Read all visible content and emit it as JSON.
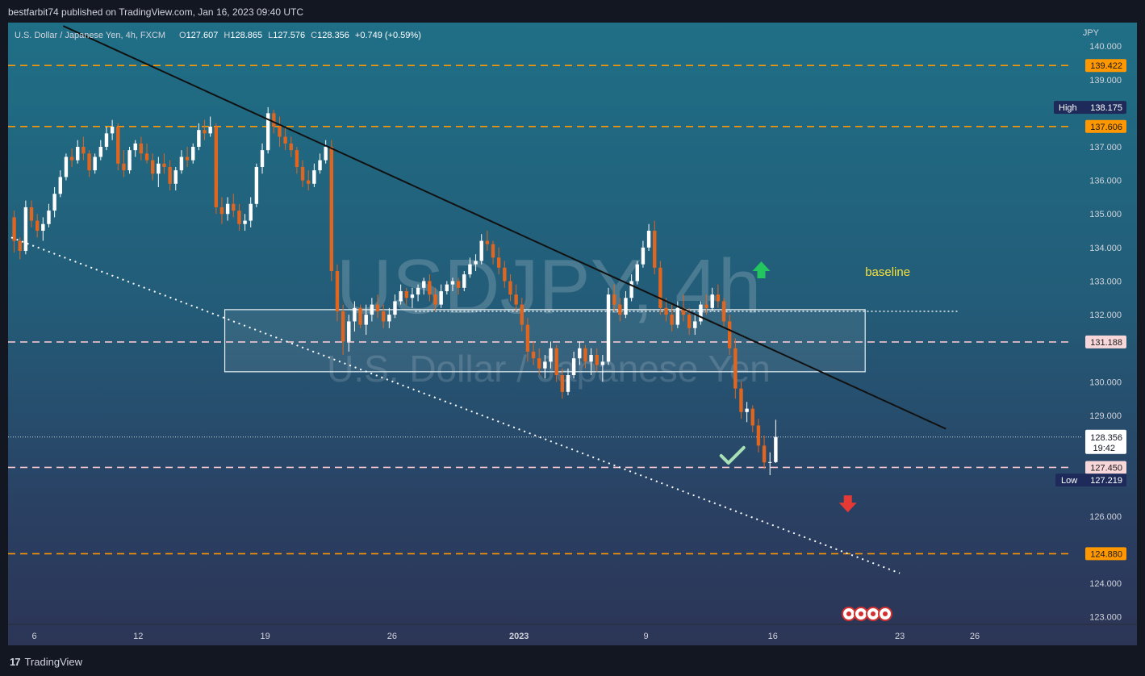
{
  "header": {
    "publisher": "bestfarbit74 published on TradingView.com, Jan 16, 2023 09:40 UTC"
  },
  "footer": {
    "logo_glyph": "17",
    "brand": "TradingView"
  },
  "colors": {
    "up": "#ffffff",
    "down": "#e0661f",
    "orange_line": "#ff9800",
    "pink_line": "#f5c6cb",
    "high_low_badge": "#1e2b5a",
    "trendline": "#111111",
    "dotted_line": "#ffffff",
    "baseline_text": "#f5e13a",
    "up_arrow": "#22c55e",
    "down_arrow": "#e53935",
    "check": "#a7e0b5"
  },
  "chart_data": {
    "type": "candlestick",
    "title": "U.S. Dollar / Japanese Yen, 4h, FXCM",
    "ohlc_text": {
      "o_label": "O",
      "o": "127.607",
      "h_label": "H",
      "h": "128.865",
      "l_label": "L",
      "l": "127.576",
      "c_label": "C",
      "c": "128.356",
      "change": "+0.749 (+0.59%)"
    },
    "watermark_title": "USDJPY, 4h",
    "watermark_subtitle": "U.S. Dollar / Japanese Yen",
    "currency": "JPY",
    "ylim": [
      122.8,
      140.7
    ],
    "y_ticks": [
      "123.000",
      "124.000",
      "126.000",
      "128.000",
      "129.000",
      "130.000",
      "132.000",
      "133.000",
      "134.000",
      "135.000",
      "136.000",
      "137.000",
      "139.000",
      "140.000"
    ],
    "x_ticks": [
      {
        "label": "6",
        "i": 4,
        "bold": false
      },
      {
        "label": "12",
        "i": 22,
        "bold": false
      },
      {
        "label": "19",
        "i": 44,
        "bold": false
      },
      {
        "label": "26",
        "i": 66,
        "bold": false
      },
      {
        "label": "2023",
        "i": 88,
        "bold": true
      },
      {
        "label": "9",
        "i": 110,
        "bold": false
      },
      {
        "label": "16",
        "i": 132,
        "bold": false
      },
      {
        "label": "23",
        "i": 154,
        "bold": false
      },
      {
        "label": "26",
        "i": 167,
        "bold": false
      }
    ],
    "levels": [
      {
        "value": 139.422,
        "label": "139.422",
        "style": "orange"
      },
      {
        "value": 137.606,
        "label": "137.606",
        "style": "orange"
      },
      {
        "value": 131.188,
        "label": "131.188",
        "style": "pink"
      },
      {
        "value": 127.45,
        "label": "127.450",
        "style": "pink"
      },
      {
        "value": 124.88,
        "label": "124.880",
        "style": "orange"
      }
    ],
    "high": {
      "label": "High",
      "value": 138.175,
      "text": "138.175"
    },
    "low": {
      "label": "Low",
      "value": 127.219,
      "text": "127.219"
    },
    "last_price": {
      "value": 128.356,
      "text": "128.356",
      "countdown": "19:42"
    },
    "baseline_label": "baseline",
    "baseline_value": 132.1,
    "zone": {
      "i_from": 37,
      "i_to": 148,
      "top": 132.15,
      "bottom": 130.3
    },
    "downtrend_line": {
      "from": {
        "i": 9,
        "v": 140.6
      },
      "to": {
        "i": 162,
        "v": 128.6
      }
    },
    "support_line": {
      "from": {
        "i": 0,
        "v": 134.3
      },
      "to": {
        "i": 154,
        "v": 124.3
      }
    },
    "arrow_up": {
      "i": 130,
      "v": 133.3
    },
    "arrow_down": {
      "i": 145,
      "v": 126.4
    },
    "check": {
      "i": 125,
      "v": 127.8
    },
    "event_icon_count": 4,
    "candles": [
      [
        134.9,
        135.1,
        133.85,
        134.2
      ],
      [
        134.2,
        134.3,
        133.65,
        133.9
      ],
      [
        133.9,
        135.4,
        133.8,
        135.2
      ],
      [
        135.2,
        135.4,
        134.6,
        134.8
      ],
      [
        134.8,
        135.0,
        134.3,
        134.5
      ],
      [
        134.5,
        134.9,
        134.2,
        134.7
      ],
      [
        134.7,
        135.3,
        134.6,
        135.1
      ],
      [
        135.1,
        135.8,
        134.9,
        135.6
      ],
      [
        135.6,
        136.3,
        135.5,
        136.1
      ],
      [
        136.1,
        136.8,
        136.0,
        136.7
      ],
      [
        136.7,
        136.95,
        136.4,
        136.6
      ],
      [
        136.6,
        137.2,
        136.5,
        137.0
      ],
      [
        137.0,
        137.3,
        136.6,
        136.8
      ],
      [
        136.8,
        136.9,
        136.1,
        136.3
      ],
      [
        136.3,
        136.8,
        136.2,
        136.7
      ],
      [
        136.7,
        137.2,
        136.6,
        137.0
      ],
      [
        137.0,
        137.6,
        136.9,
        137.4
      ],
      [
        137.4,
        137.8,
        137.2,
        137.6
      ],
      [
        137.6,
        137.7,
        136.3,
        136.5
      ],
      [
        136.5,
        136.9,
        136.1,
        136.3
      ],
      [
        136.3,
        137.0,
        136.2,
        136.9
      ],
      [
        136.9,
        137.2,
        136.7,
        137.1
      ],
      [
        137.1,
        137.3,
        136.6,
        136.8
      ],
      [
        136.8,
        137.1,
        136.5,
        136.6
      ],
      [
        136.6,
        136.8,
        136.0,
        136.2
      ],
      [
        136.2,
        136.7,
        135.8,
        136.5
      ],
      [
        136.5,
        136.8,
        136.2,
        136.4
      ],
      [
        136.4,
        136.6,
        135.7,
        135.9
      ],
      [
        135.9,
        136.4,
        135.7,
        136.3
      ],
      [
        136.3,
        136.9,
        136.2,
        136.7
      ],
      [
        136.7,
        137.0,
        136.4,
        136.6
      ],
      [
        136.6,
        137.1,
        136.5,
        137.0
      ],
      [
        137.0,
        137.7,
        136.9,
        137.5
      ],
      [
        137.5,
        137.8,
        137.2,
        137.4
      ],
      [
        137.4,
        137.9,
        137.3,
        137.6
      ],
      [
        137.6,
        137.7,
        135.0,
        135.2
      ],
      [
        135.2,
        135.5,
        134.7,
        135.0
      ],
      [
        135.0,
        135.5,
        134.8,
        135.3
      ],
      [
        135.3,
        135.6,
        134.9,
        135.1
      ],
      [
        135.1,
        135.3,
        134.5,
        134.7
      ],
      [
        134.7,
        135.0,
        134.5,
        134.8
      ],
      [
        134.8,
        135.5,
        134.6,
        135.3
      ],
      [
        135.3,
        136.5,
        135.2,
        136.4
      ],
      [
        136.4,
        137.1,
        136.2,
        136.9
      ],
      [
        136.9,
        138.18,
        136.8,
        138.0
      ],
      [
        138.0,
        138.1,
        137.4,
        137.6
      ],
      [
        137.6,
        137.9,
        137.0,
        137.3
      ],
      [
        137.3,
        137.6,
        136.9,
        137.1
      ],
      [
        137.1,
        137.3,
        136.7,
        136.9
      ],
      [
        136.9,
        137.0,
        136.2,
        136.4
      ],
      [
        136.4,
        136.6,
        135.8,
        136.0
      ],
      [
        136.0,
        136.3,
        135.7,
        135.9
      ],
      [
        135.9,
        136.5,
        135.8,
        136.3
      ],
      [
        136.3,
        136.8,
        136.2,
        136.6
      ],
      [
        136.6,
        137.2,
        136.5,
        137.0
      ],
      [
        137.0,
        137.2,
        133.0,
        133.3
      ],
      [
        133.3,
        133.5,
        131.8,
        132.1
      ],
      [
        132.1,
        132.3,
        130.8,
        131.2
      ],
      [
        131.2,
        132.0,
        130.9,
        131.8
      ],
      [
        131.8,
        132.4,
        131.5,
        132.2
      ],
      [
        132.2,
        132.3,
        131.6,
        131.7
      ],
      [
        131.7,
        132.3,
        131.4,
        132.0
      ],
      [
        132.0,
        132.5,
        131.8,
        132.3
      ],
      [
        132.3,
        132.6,
        131.9,
        132.1
      ],
      [
        132.1,
        132.3,
        131.6,
        131.8
      ],
      [
        131.8,
        132.2,
        131.6,
        132.0
      ],
      [
        132.0,
        132.6,
        131.9,
        132.4
      ],
      [
        132.4,
        132.9,
        132.3,
        132.7
      ],
      [
        132.7,
        132.8,
        132.3,
        132.5
      ],
      [
        132.5,
        132.8,
        132.2,
        132.6
      ],
      [
        132.6,
        132.9,
        132.4,
        132.8
      ],
      [
        132.8,
        133.1,
        132.6,
        133.0
      ],
      [
        133.0,
        133.2,
        132.4,
        132.6
      ],
      [
        132.6,
        132.8,
        132.1,
        132.3
      ],
      [
        132.3,
        132.9,
        132.2,
        132.7
      ],
      [
        132.7,
        133.0,
        132.6,
        132.9
      ],
      [
        132.9,
        133.1,
        132.7,
        133.0
      ],
      [
        133.0,
        133.1,
        132.6,
        132.8
      ],
      [
        132.8,
        133.3,
        132.7,
        133.2
      ],
      [
        133.2,
        133.7,
        133.1,
        133.5
      ],
      [
        133.5,
        133.8,
        133.3,
        133.6
      ],
      [
        133.6,
        134.4,
        133.5,
        134.2
      ],
      [
        134.2,
        134.5,
        133.9,
        134.1
      ],
      [
        134.1,
        134.2,
        133.5,
        133.7
      ],
      [
        133.7,
        134.0,
        133.2,
        133.4
      ],
      [
        133.4,
        133.6,
        132.8,
        133.0
      ],
      [
        133.0,
        133.2,
        132.4,
        132.6
      ],
      [
        132.6,
        132.9,
        132.1,
        132.3
      ],
      [
        132.3,
        132.5,
        131.5,
        131.7
      ],
      [
        131.7,
        131.9,
        130.6,
        130.9
      ],
      [
        130.9,
        131.2,
        130.5,
        130.7
      ],
      [
        130.7,
        131.0,
        130.2,
        130.4
      ],
      [
        130.4,
        130.8,
        130.1,
        130.6
      ],
      [
        130.6,
        131.2,
        130.4,
        131.0
      ],
      [
        131.0,
        131.1,
        130.0,
        130.2
      ],
      [
        130.2,
        130.4,
        129.5,
        129.7
      ],
      [
        129.7,
        130.4,
        129.6,
        130.2
      ],
      [
        130.2,
        130.9,
        130.1,
        130.7
      ],
      [
        130.7,
        131.2,
        130.5,
        131.0
      ],
      [
        131.0,
        131.1,
        130.4,
        130.6
      ],
      [
        130.6,
        131.0,
        130.2,
        130.8
      ],
      [
        130.8,
        131.0,
        130.3,
        130.5
      ],
      [
        130.5,
        130.8,
        130.0,
        130.6
      ],
      [
        130.6,
        132.8,
        130.5,
        132.6
      ],
      [
        132.6,
        132.9,
        132.1,
        132.3
      ],
      [
        132.3,
        132.5,
        131.8,
        132.0
      ],
      [
        132.0,
        132.7,
        131.9,
        132.5
      ],
      [
        132.5,
        133.2,
        132.4,
        133.0
      ],
      [
        133.0,
        133.6,
        132.9,
        133.5
      ],
      [
        133.5,
        134.2,
        133.4,
        134.0
      ],
      [
        134.0,
        134.7,
        133.9,
        134.5
      ],
      [
        134.5,
        134.8,
        133.2,
        133.4
      ],
      [
        133.4,
        133.6,
        132.0,
        132.2
      ],
      [
        132.2,
        132.5,
        131.8,
        132.0
      ],
      [
        132.0,
        132.3,
        131.5,
        131.7
      ],
      [
        131.7,
        132.4,
        131.6,
        132.2
      ],
      [
        132.2,
        132.6,
        131.8,
        132.0
      ],
      [
        132.0,
        132.2,
        131.4,
        131.6
      ],
      [
        131.6,
        132.0,
        131.4,
        131.8
      ],
      [
        131.8,
        132.4,
        131.7,
        132.3
      ],
      [
        132.3,
        132.6,
        132.0,
        132.2
      ],
      [
        132.2,
        132.8,
        132.1,
        132.6
      ],
      [
        132.6,
        132.9,
        132.2,
        132.4
      ],
      [
        132.4,
        132.5,
        131.6,
        131.8
      ],
      [
        131.8,
        132.0,
        130.8,
        131.0
      ],
      [
        131.0,
        131.3,
        129.5,
        129.8
      ],
      [
        129.8,
        130.0,
        128.9,
        129.1
      ],
      [
        129.1,
        129.4,
        128.8,
        129.2
      ],
      [
        129.2,
        129.3,
        128.5,
        128.7
      ],
      [
        128.7,
        128.9,
        127.9,
        128.1
      ],
      [
        128.1,
        128.4,
        127.4,
        127.6
      ],
      [
        127.6,
        127.9,
        127.22,
        127.61
      ],
      [
        127.61,
        128.87,
        127.58,
        128.36
      ]
    ]
  }
}
